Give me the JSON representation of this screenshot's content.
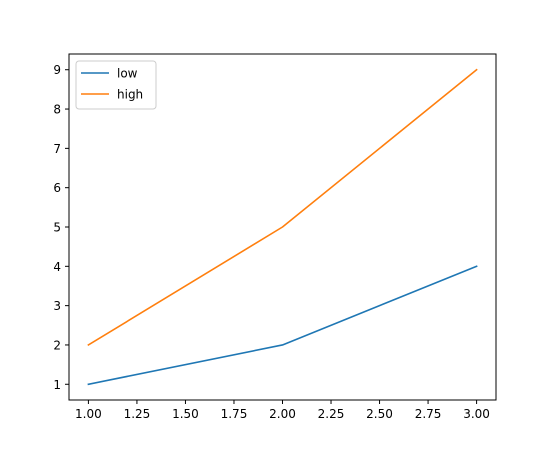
{
  "chart_data": {
    "type": "line",
    "title": "",
    "xlabel": "",
    "ylabel": "",
    "xlim": [
      0.9,
      3.1
    ],
    "ylim": [
      0.6,
      9.4
    ],
    "grid": false,
    "legend_placement": "upper-left",
    "xticks": [
      1.0,
      1.25,
      1.5,
      1.75,
      2.0,
      2.25,
      2.5,
      2.75,
      3.0
    ],
    "xtick_labels": [
      "1.00",
      "1.25",
      "1.50",
      "1.75",
      "2.00",
      "2.25",
      "2.50",
      "2.75",
      "3.00"
    ],
    "yticks": [
      1,
      2,
      3,
      4,
      5,
      6,
      7,
      8,
      9
    ],
    "ytick_labels": [
      "1",
      "2",
      "3",
      "4",
      "5",
      "6",
      "7",
      "8",
      "9"
    ],
    "series": [
      {
        "name": "low",
        "color": "#1f77b4",
        "x": [
          1,
          2,
          3
        ],
        "y": [
          1,
          2,
          4
        ]
      },
      {
        "name": "high",
        "color": "#ff7f0e",
        "x": [
          1,
          2,
          3
        ],
        "y": [
          2,
          5,
          9
        ]
      }
    ]
  }
}
